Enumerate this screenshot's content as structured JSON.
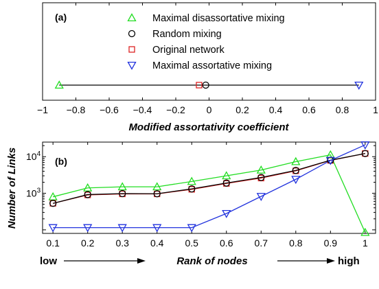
{
  "chart_data": [
    {
      "type": "scatter",
      "panel_label": "(a)",
      "xlabel": "Modified assortativity coefficient",
      "xlim": [
        -1,
        1
      ],
      "xticks": [
        "−1",
        "−0.8",
        "−0.6",
        "−0.4",
        "−0.2",
        "0",
        "0.2",
        "0.4",
        "0.6",
        "0.8",
        "1"
      ],
      "xtick_values": [
        -1,
        -0.8,
        -0.6,
        -0.4,
        -0.2,
        0,
        0.2,
        0.4,
        0.6,
        0.8,
        1
      ],
      "range_line": [
        -0.9,
        0.9
      ],
      "legend_placement": "top-center",
      "series": [
        {
          "name": "Maximal disassortative mixing",
          "marker": "triangle-up",
          "color": "#22dd22",
          "x": -0.9
        },
        {
          "name": "Random mixing",
          "marker": "circle",
          "color": "#000000",
          "x": -0.02
        },
        {
          "name": "Original network",
          "marker": "square",
          "color": "#dd2222",
          "x": -0.06
        },
        {
          "name": "Maximal assortative mixing",
          "marker": "triangle-down",
          "color": "#2233dd",
          "x": 0.9
        }
      ]
    },
    {
      "type": "line",
      "panel_label": "(b)",
      "ylabel": "Number of Links",
      "ylog": true,
      "ylim": [
        80,
        25000
      ],
      "yticks": [
        1000,
        10000
      ],
      "ytick_labels": [
        [
          "10",
          "3"
        ],
        [
          "10",
          "4"
        ]
      ],
      "x": [
        0.1,
        0.2,
        0.3,
        0.4,
        0.5,
        0.6,
        0.7,
        0.8,
        0.9,
        1.0
      ],
      "xlim": [
        0.07,
        1.03
      ],
      "xticks": [
        "0.1",
        "0.2",
        "0.3",
        "0.4",
        "0.5",
        "0.6",
        "0.7",
        "0.8",
        "0.9",
        "1"
      ],
      "series": [
        {
          "name": "Maximal disassortative mixing",
          "marker": "triangle-up",
          "color": "#22dd22",
          "values": [
            800,
            1400,
            1500,
            1500,
            2100,
            3000,
            4300,
            7300,
            11200,
            85
          ]
        },
        {
          "name": "Original network",
          "marker": "square",
          "color": "#dd2222",
          "values": [
            530,
            900,
            960,
            960,
            1280,
            1850,
            2600,
            4100,
            7900,
            12200
          ]
        },
        {
          "name": "Random mixing",
          "marker": "circle",
          "color": "#000000",
          "values": [
            530,
            920,
            980,
            970,
            1320,
            1900,
            2700,
            4200,
            8000,
            12200
          ]
        },
        {
          "name": "Maximal assortative mixing",
          "marker": "triangle-down",
          "color": "#2233dd",
          "values": [
            115,
            115,
            115,
            115,
            115,
            280,
            820,
            2400,
            7900,
            21000
          ]
        }
      ]
    }
  ],
  "bottom_annotation": {
    "low_label": "low",
    "center_label": "Rank of nodes",
    "high_label": "high"
  }
}
